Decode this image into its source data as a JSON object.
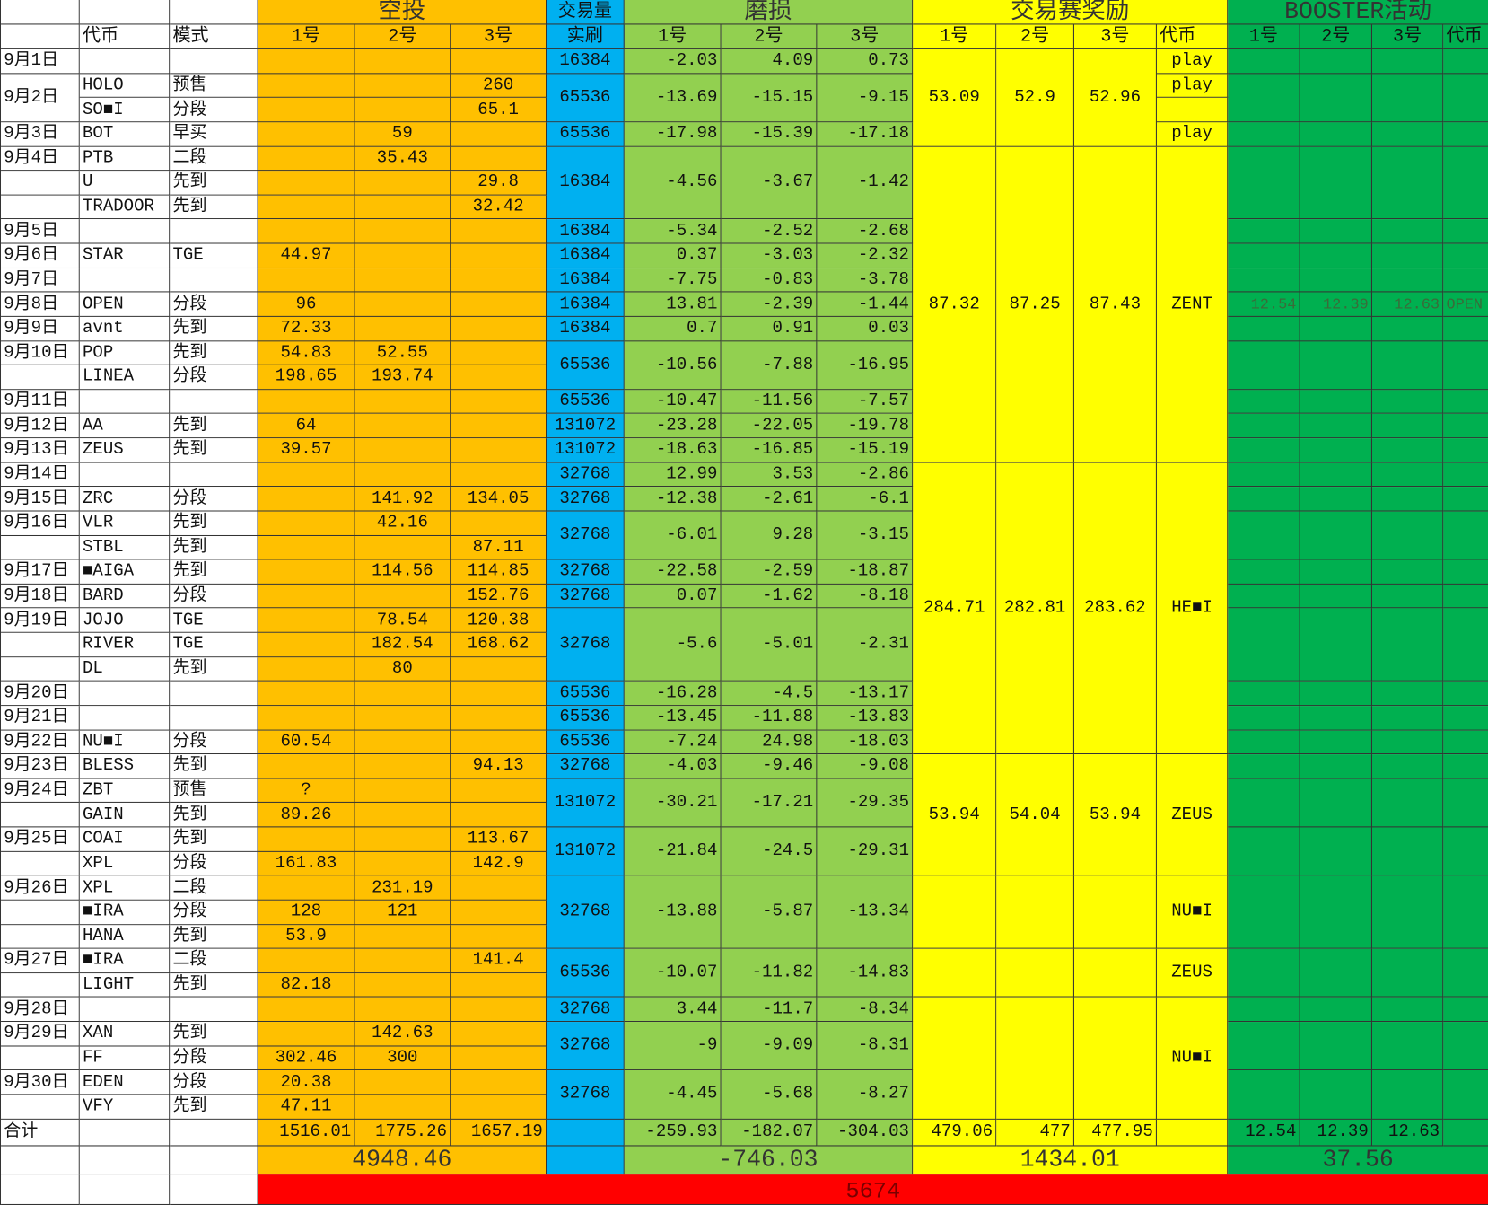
{
  "colors": {
    "airdrop": "#FFC000",
    "volume": "#00B0F0",
    "loss": "#92D050",
    "competition": "#FFFF00",
    "booster": "#00B050",
    "grand_total": "#FF0000"
  },
  "header": {
    "airdrop": "空投",
    "volume": "交易量",
    "loss": "磨损",
    "competition": "交易赛奖励",
    "booster": "BOOSTER活动",
    "token": "代币",
    "mode": "模式",
    "slots": [
      "1号",
      "2号",
      "3号"
    ],
    "volume_sub": "实刷",
    "comp_token": "代币",
    "booster_token": "代币"
  },
  "rows": [
    {
      "date": "9月1日",
      "token": "",
      "mode": "",
      "airdrop": [
        "",
        "",
        ""
      ]
    },
    {
      "date": "9月2日",
      "date_span": 2,
      "token": "HOLO",
      "mode": "预售",
      "airdrop": [
        "",
        "",
        "260"
      ]
    },
    {
      "token": "SO■I",
      "mode": "分段",
      "airdrop": [
        "",
        "",
        "65.1"
      ]
    },
    {
      "date": "9月3日",
      "token": "BOT",
      "mode": "早买",
      "airdrop": [
        "",
        "59",
        ""
      ]
    },
    {
      "date": "9月4日",
      "token": "PTB",
      "mode": "二段",
      "airdrop": [
        "",
        "35.43",
        ""
      ]
    },
    {
      "date": "",
      "token": "U",
      "mode": "先到",
      "airdrop": [
        "",
        "",
        "29.8"
      ]
    },
    {
      "date": "",
      "token": "TRADOOR",
      "mode": "先到",
      "airdrop": [
        "",
        "",
        "32.42"
      ]
    },
    {
      "date": "9月5日",
      "token": "",
      "mode": "",
      "airdrop": [
        "",
        "",
        ""
      ]
    },
    {
      "date": "9月6日",
      "token": "STAR",
      "mode": "TGE",
      "airdrop": [
        "44.97",
        "",
        ""
      ]
    },
    {
      "date": "9月7日",
      "token": "",
      "mode": "",
      "airdrop": [
        "",
        "",
        ""
      ]
    },
    {
      "date": "9月8日",
      "token": "OPEN",
      "mode": "分段",
      "airdrop": [
        "96",
        "",
        ""
      ]
    },
    {
      "date": "9月9日",
      "token": "avnt",
      "mode": "先到",
      "airdrop": [
        "72.33",
        "",
        ""
      ]
    },
    {
      "date": "9月10日",
      "token": "POP",
      "mode": "先到",
      "airdrop": [
        "54.83",
        "52.55",
        ""
      ]
    },
    {
      "date": "",
      "token": "LINEA",
      "mode": "分段",
      "airdrop": [
        "198.65",
        "193.74",
        ""
      ]
    },
    {
      "date": "9月11日",
      "token": "",
      "mode": "",
      "airdrop": [
        "",
        "",
        ""
      ]
    },
    {
      "date": "9月12日",
      "token": "AA",
      "mode": "先到",
      "airdrop": [
        "64",
        "",
        ""
      ]
    },
    {
      "date": "9月13日",
      "token": "ZEUS",
      "mode": "先到",
      "airdrop": [
        "39.57",
        "",
        ""
      ]
    },
    {
      "date": "9月14日",
      "token": "",
      "mode": "",
      "airdrop": [
        "",
        "",
        ""
      ]
    },
    {
      "date": "9月15日",
      "token": "ZRC",
      "mode": "分段",
      "airdrop": [
        "",
        "141.92",
        "134.05"
      ]
    },
    {
      "date": "9月16日",
      "token": "VLR",
      "mode": "先到",
      "airdrop": [
        "",
        "42.16",
        ""
      ]
    },
    {
      "date": "",
      "token": "STBL",
      "mode": "先到",
      "airdrop": [
        "",
        "",
        "87.11"
      ]
    },
    {
      "date": "9月17日",
      "token": "■AIGA",
      "mode": "先到",
      "airdrop": [
        "",
        "114.56",
        "114.85"
      ]
    },
    {
      "date": "9月18日",
      "token": "BARD",
      "mode": "分段",
      "airdrop": [
        "",
        "",
        "152.76"
      ]
    },
    {
      "date": "9月19日",
      "token": "JOJO",
      "mode": "TGE",
      "airdrop": [
        "",
        "78.54",
        "120.38"
      ]
    },
    {
      "date": "",
      "token": "RIVER",
      "mode": "TGE",
      "airdrop": [
        "",
        "182.54",
        "168.62"
      ]
    },
    {
      "date": "",
      "token": "DL",
      "mode": "先到",
      "airdrop": [
        "",
        "80",
        ""
      ]
    },
    {
      "date": "9月20日",
      "token": "",
      "mode": "",
      "airdrop": [
        "",
        "",
        ""
      ]
    },
    {
      "date": "9月21日",
      "token": "",
      "mode": "",
      "airdrop": [
        "",
        "",
        ""
      ]
    },
    {
      "date": "9月22日",
      "token": "NU■I",
      "mode": "分段",
      "airdrop": [
        "60.54",
        "",
        ""
      ]
    },
    {
      "date": "9月23日",
      "token": "BLESS",
      "mode": "先到",
      "airdrop": [
        "",
        "",
        "94.13"
      ]
    },
    {
      "date": "9月24日",
      "token": "ZBT",
      "mode": "预售",
      "airdrop": [
        "?",
        "",
        ""
      ]
    },
    {
      "date": "",
      "token": "GAIN",
      "mode": "先到",
      "airdrop": [
        "89.26",
        "",
        ""
      ]
    },
    {
      "date": "9月25日",
      "token": "COAI",
      "mode": "先到",
      "airdrop": [
        "",
        "",
        "113.67"
      ]
    },
    {
      "date": "",
      "token": "XPL",
      "mode": "分段",
      "airdrop": [
        "161.83",
        "",
        "142.9"
      ]
    },
    {
      "date": "9月26日",
      "token": "XPL",
      "mode": "二段",
      "airdrop": [
        "",
        "231.19",
        ""
      ]
    },
    {
      "date": "",
      "token": "■IRA",
      "mode": "分段",
      "airdrop": [
        "128",
        "121",
        ""
      ]
    },
    {
      "date": "",
      "token": "HANA",
      "mode": "先到",
      "airdrop": [
        "53.9",
        "",
        ""
      ]
    },
    {
      "date": "9月27日",
      "token": "■IRA",
      "mode": "二段",
      "airdrop": [
        "",
        "",
        "141.4"
      ]
    },
    {
      "date": "",
      "token": "LIGHT",
      "mode": "先到",
      "airdrop": [
        "82.18",
        "",
        ""
      ]
    },
    {
      "date": "9月28日",
      "token": "",
      "mode": "",
      "airdrop": [
        "",
        "",
        ""
      ]
    },
    {
      "date": "9月29日",
      "token": "XAN",
      "mode": "先到",
      "airdrop": [
        "",
        "142.63",
        ""
      ]
    },
    {
      "date": "",
      "token": "FF",
      "mode": "分段",
      "airdrop": [
        "302.46",
        "300",
        ""
      ]
    },
    {
      "date": "9月30日",
      "token": "EDEN",
      "mode": "分段",
      "airdrop": [
        "20.38",
        "",
        ""
      ]
    },
    {
      "date": "",
      "token": "VFY",
      "mode": "先到",
      "airdrop": [
        "47.11",
        "",
        ""
      ]
    }
  ],
  "volume_groups": [
    {
      "rows": 1,
      "volume": "16384",
      "loss": [
        "-2.03",
        "4.09",
        "0.73"
      ]
    },
    {
      "rows": 2,
      "volume": "65536",
      "loss": [
        "-13.69",
        "-15.15",
        "-9.15"
      ]
    },
    {
      "rows": 1,
      "volume": "65536",
      "loss": [
        "-17.98",
        "-15.39",
        "-17.18"
      ]
    },
    {
      "rows": 3,
      "volume": "16384",
      "loss": [
        "-4.56",
        "-3.67",
        "-1.42"
      ]
    },
    {
      "rows": 1,
      "volume": "16384",
      "loss": [
        "-5.34",
        "-2.52",
        "-2.68"
      ]
    },
    {
      "rows": 1,
      "volume": "16384",
      "loss": [
        "0.37",
        "-3.03",
        "-2.32"
      ]
    },
    {
      "rows": 1,
      "volume": "16384",
      "loss": [
        "-7.75",
        "-0.83",
        "-3.78"
      ]
    },
    {
      "rows": 1,
      "volume": "16384",
      "loss": [
        "13.81",
        "-2.39",
        "-1.44"
      ],
      "booster": [
        "12.54",
        "12.39",
        "12.63",
        "OPEN"
      ]
    },
    {
      "rows": 1,
      "volume": "16384",
      "loss": [
        "0.7",
        "0.91",
        "0.03"
      ]
    },
    {
      "rows": 2,
      "volume": "65536",
      "loss": [
        "-10.56",
        "-7.88",
        "-16.95"
      ]
    },
    {
      "rows": 1,
      "volume": "65536",
      "loss": [
        "-10.47",
        "-11.56",
        "-7.57"
      ]
    },
    {
      "rows": 1,
      "volume": "131072",
      "loss": [
        "-23.28",
        "-22.05",
        "-19.78"
      ]
    },
    {
      "rows": 1,
      "volume": "131072",
      "loss": [
        "-18.63",
        "-16.85",
        "-15.19"
      ]
    },
    {
      "rows": 1,
      "volume": "32768",
      "loss": [
        "12.99",
        "3.53",
        "-2.86"
      ]
    },
    {
      "rows": 1,
      "volume": "32768",
      "loss": [
        "-12.38",
        "-2.61",
        "-6.1"
      ]
    },
    {
      "rows": 2,
      "volume": "32768",
      "loss": [
        "-6.01",
        "9.28",
        "-3.15"
      ]
    },
    {
      "rows": 1,
      "volume": "32768",
      "loss": [
        "-22.58",
        "-2.59",
        "-18.87"
      ]
    },
    {
      "rows": 1,
      "volume": "32768",
      "loss": [
        "0.07",
        "-1.62",
        "-8.18"
      ]
    },
    {
      "rows": 3,
      "volume": "32768",
      "loss": [
        "-5.6",
        "-5.01",
        "-2.31"
      ]
    },
    {
      "rows": 1,
      "volume": "65536",
      "loss": [
        "-16.28",
        "-4.5",
        "-13.17"
      ]
    },
    {
      "rows": 1,
      "volume": "65536",
      "loss": [
        "-13.45",
        "-11.88",
        "-13.83"
      ]
    },
    {
      "rows": 1,
      "volume": "65536",
      "loss": [
        "-7.24",
        "24.98",
        "-18.03"
      ]
    },
    {
      "rows": 1,
      "volume": "32768",
      "loss": [
        "-4.03",
        "-9.46",
        "-9.08"
      ]
    },
    {
      "rows": 2,
      "volume": "131072",
      "loss": [
        "-30.21",
        "-17.21",
        "-29.35"
      ]
    },
    {
      "rows": 2,
      "volume": "131072",
      "loss": [
        "-21.84",
        "-24.5",
        "-29.31"
      ]
    },
    {
      "rows": 3,
      "volume": "32768",
      "loss": [
        "-13.88",
        "-5.87",
        "-13.34"
      ]
    },
    {
      "rows": 2,
      "volume": "65536",
      "loss": [
        "-10.07",
        "-11.82",
        "-14.83"
      ]
    },
    {
      "rows": 1,
      "volume": "32768",
      "loss": [
        "3.44",
        "-11.7",
        "-8.34"
      ]
    },
    {
      "rows": 2,
      "volume": "32768",
      "loss": [
        "-9",
        "-9.09",
        "-8.31"
      ]
    },
    {
      "rows": 2,
      "volume": "32768",
      "loss": [
        "-4.45",
        "-5.68",
        "-8.27"
      ]
    }
  ],
  "competition_groups": [
    {
      "rows": 4,
      "rewards": [
        "53.09",
        "52.9",
        "52.96"
      ]
    },
    {
      "rows": 13,
      "rewards": [
        "87.32",
        "87.25",
        "87.43"
      ]
    },
    {
      "rows": 12,
      "rewards": [
        "284.71",
        "282.81",
        "283.62"
      ]
    },
    {
      "rows": 5,
      "rewards": [
        "53.94",
        "54.04",
        "53.94"
      ]
    },
    {
      "rows": 3,
      "rewards": [
        "",
        "",
        ""
      ]
    },
    {
      "rows": 2,
      "rewards": [
        "",
        "",
        ""
      ]
    },
    {
      "rows": 5,
      "rewards": [
        "",
        "",
        ""
      ]
    }
  ],
  "competition_tokens": [
    {
      "rows": 1,
      "token": "play"
    },
    {
      "rows": 1,
      "token": "play"
    },
    {
      "rows": 1,
      "token": ""
    },
    {
      "rows": 1,
      "token": "play"
    },
    {
      "rows": 13,
      "token": "ZENT"
    },
    {
      "rows": 12,
      "token": "HE■I"
    },
    {
      "rows": 5,
      "token": "ZEUS"
    },
    {
      "rows": 3,
      "token": "NU■I"
    },
    {
      "rows": 2,
      "token": "ZEUS"
    },
    {
      "rows": 5,
      "token": "NU■I"
    }
  ],
  "totals": {
    "label": "合计",
    "airdrop": [
      "1516.01",
      "1775.26",
      "1657.19"
    ],
    "loss": [
      "-259.93",
      "-182.07",
      "-304.03"
    ],
    "competition": [
      "479.06",
      "477",
      "477.95"
    ],
    "booster": [
      "12.54",
      "12.39",
      "12.63"
    ],
    "airdrop_sum": "4948.46",
    "loss_sum": "-746.03",
    "competition_sum": "1434.01",
    "booster_sum": "37.56",
    "grand_total": "5674"
  }
}
